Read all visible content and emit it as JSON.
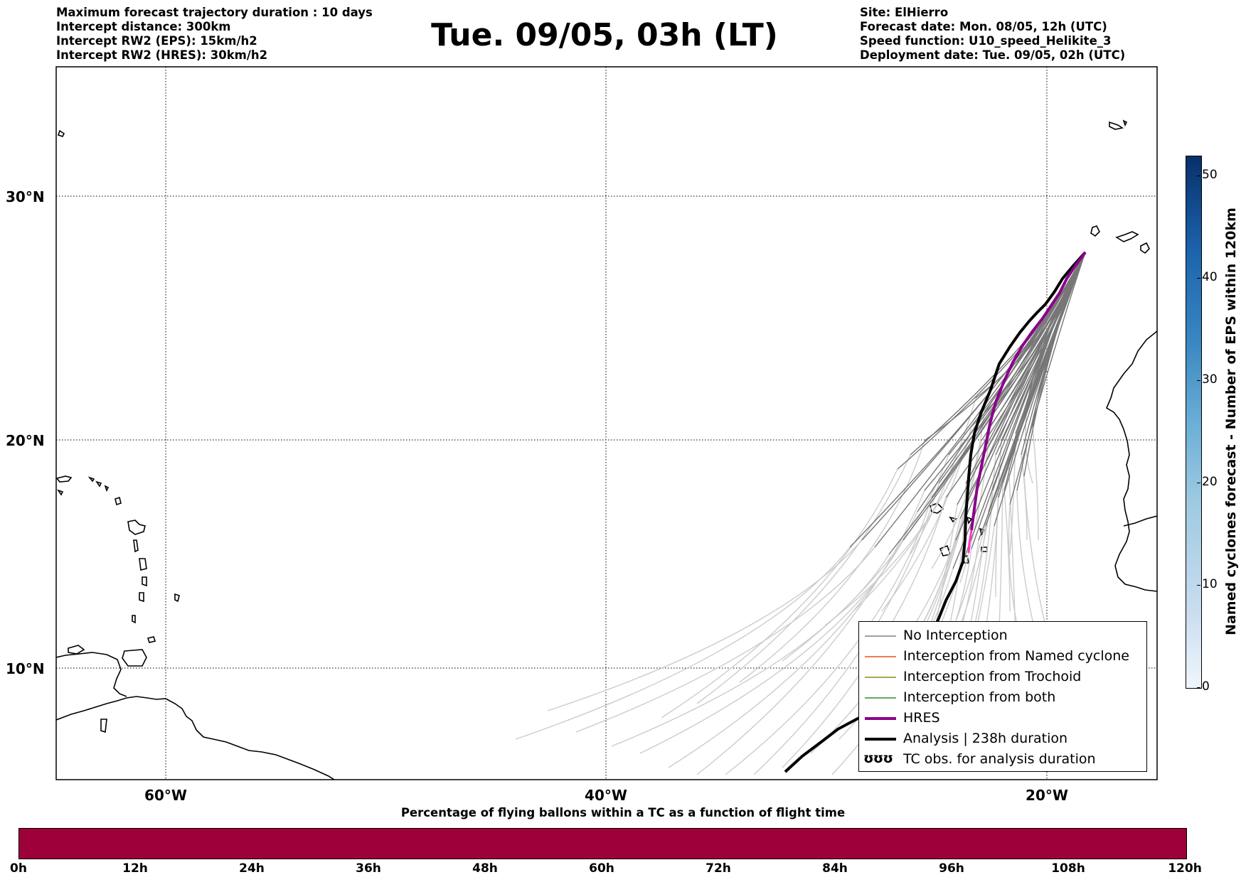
{
  "title": "Tue. 09/05, 03h (LT)",
  "info_left": [
    "Maximum forecast trajectory duration : 10 days",
    "Intercept distance: 300km",
    "Intercept RW2 (EPS):  15km/h2",
    "Intercept RW2 (HRES): 30km/h2"
  ],
  "info_right": [
    "Site: ElHierro",
    "Forecast date: Mon. 08/05, 12h (UTC)",
    "Speed function: U10_speed_Helikite_3",
    "Deployment date: Tue. 09/05, 02h (UTC)"
  ],
  "map": {
    "lat_labels": [
      "30°N",
      "20°N",
      "10°N"
    ],
    "lon_labels": [
      "60°W",
      "40°W",
      "20°W"
    ],
    "colors": {
      "no_interception": "#777777",
      "no_interception_late": "#cccccc",
      "named_cyclone": "#e8501c",
      "trochoid": "#8b8b1a",
      "both": "#2e8b2e",
      "hres": "#8b008b",
      "analysis": "#000000"
    }
  },
  "legend": {
    "items": [
      {
        "label": "No Interception",
        "color": "#808080",
        "style": "thin"
      },
      {
        "label": "Interception from Named cyclone",
        "color": "#e8501c",
        "style": "thin"
      },
      {
        "label": "Interception from Trochoid",
        "color": "#8b8b1a",
        "style": "thin"
      },
      {
        "label": "Interception from both",
        "color": "#2e8b2e",
        "style": "thin"
      },
      {
        "label": "HRES",
        "color": "#8b008b",
        "style": "thick"
      },
      {
        "label": "Analysis | 238h duration",
        "color": "#000000",
        "style": "thick"
      },
      {
        "label": "TC obs. for analysis duration",
        "color": "#000000",
        "style": "glyph",
        "glyph": "ʊʊʊ"
      }
    ]
  },
  "colorbar_right": {
    "label": "Named cyclones forecast - Number of EPS within 120km",
    "ticks": [
      "0",
      "10",
      "20",
      "30",
      "40",
      "50"
    ],
    "range": [
      0,
      52
    ]
  },
  "colorbar_bottom": {
    "title": "Percentage of flying ballons within a TC as a function of flight time",
    "hours": [
      "0h",
      "12h",
      "24h",
      "36h",
      "48h",
      "60h",
      "72h",
      "84h",
      "96h",
      "108h",
      "120h"
    ],
    "color": "#9e0039"
  }
}
